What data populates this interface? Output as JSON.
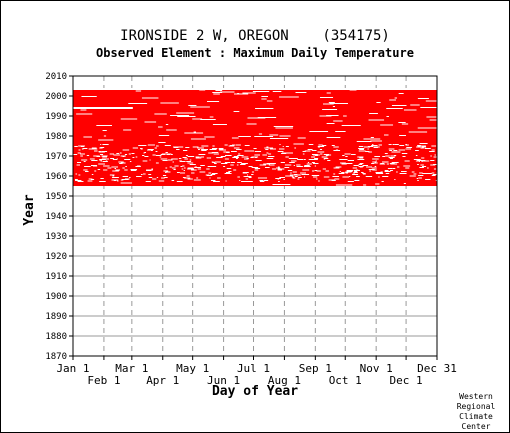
{
  "chart_data": {
    "type": "heatmap",
    "title": "IRONSIDE 2 W, OREGON    (354175)",
    "subtitle": "Observed Element : Maximum Daily Temperature",
    "xlabel": "Day of Year",
    "ylabel": "Year",
    "credit": [
      "Western",
      "Regional",
      "Climate",
      "Center"
    ],
    "colors": {
      "data": "#ff0000",
      "background": "#ffffff",
      "grid": "#999999",
      "axis": "#000000"
    },
    "x_range_days": [
      0,
      365
    ],
    "y_range_years": [
      1870,
      2010
    ],
    "x_ticks_top_row": [
      {
        "label": "Jan 1",
        "day": 0
      },
      {
        "label": "Mar 1",
        "day": 59
      },
      {
        "label": "May 1",
        "day": 120
      },
      {
        "label": "Jul 1",
        "day": 181
      },
      {
        "label": "Sep 1",
        "day": 243
      },
      {
        "label": "Nov 1",
        "day": 304
      },
      {
        "label": "Dec 31",
        "day": 365
      }
    ],
    "x_ticks_bottom_row": [
      {
        "label": "Feb 1",
        "day": 31
      },
      {
        "label": "Apr 1",
        "day": 90
      },
      {
        "label": "Jun 1",
        "day": 151
      },
      {
        "label": "Aug 1",
        "day": 212
      },
      {
        "label": "Oct 1",
        "day": 273
      },
      {
        "label": "Dec 1",
        "day": 334
      }
    ],
    "y_ticks": [
      "2010",
      "2000",
      "1990",
      "1980",
      "1970",
      "1960",
      "1950",
      "1940",
      "1930",
      "1920",
      "1910",
      "1900",
      "1890",
      "1880",
      "1870"
    ],
    "record_period_years": [
      1955,
      2004
    ],
    "sparse_rows": [
      {
        "year": 1994,
        "start_day": 0,
        "end_day": 60
      },
      {
        "year": 2003.5,
        "start_day": 0,
        "end_day": 365
      }
    ]
  }
}
